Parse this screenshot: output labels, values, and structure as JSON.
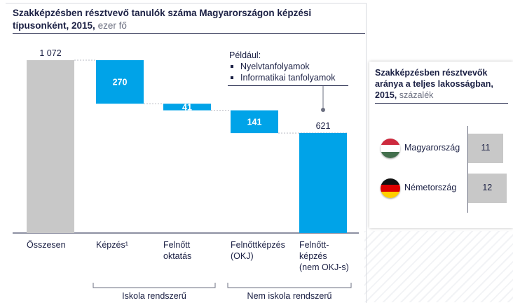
{
  "chart_data": [
    {
      "type": "waterfall",
      "title": "Szakképzésben résztvevő tanulók száma Magyarországon képzési típusonként, 2015,",
      "unit": "ezer fő",
      "ylim": [
        0,
        1072
      ],
      "categories": [
        "Összesen",
        "Képzés¹",
        "Felnőtt oktatás",
        "Felnőttképzés (OKJ)",
        "Felnőtt-képzés (nem OKJ-s)"
      ],
      "category_lines": [
        [
          "Összesen"
        ],
        [
          "Képzés¹"
        ],
        [
          "Felnőtt",
          "oktatás"
        ],
        [
          "Felnőttképzés",
          "(OKJ)"
        ],
        [
          "Felnőtt-",
          "képzés",
          "(nem OKJ-s)"
        ]
      ],
      "bars": [
        {
          "label": "1 072",
          "value": 1072,
          "start": 0,
          "end": 1072,
          "kind": "total"
        },
        {
          "label": "270",
          "value": 270,
          "start": 802,
          "end": 1072,
          "kind": "step"
        },
        {
          "label": "41",
          "value": 41,
          "start": 761,
          "end": 802,
          "kind": "step"
        },
        {
          "label": "141",
          "value": 141,
          "start": 620,
          "end": 761,
          "kind": "step"
        },
        {
          "label": "621",
          "value": 621,
          "start": 0,
          "end": 621,
          "kind": "total"
        }
      ],
      "groups": [
        {
          "label": "Iskola rendszerű",
          "from": 1,
          "to": 2
        },
        {
          "label": "Nem iskola rendszerű",
          "from": 3,
          "to": 4
        }
      ],
      "annotation": {
        "heading": "Például:",
        "items": [
          "Nyelvtanfolyamok",
          "Informatikai tanfolyamok"
        ]
      }
    },
    {
      "type": "bar",
      "orientation": "horizontal",
      "title": "Szakképzésben résztvevők aránya a teljes lakosságban, 2015,",
      "unit": "százalék",
      "categories": [
        "Magyarország",
        "Németország"
      ],
      "values": [
        11,
        12
      ],
      "value_labels": [
        "11",
        "12"
      ]
    }
  ],
  "colors": {
    "accent": "#00a3e8",
    "total": "#c8c8c8",
    "navy": "#1b2044",
    "muted": "#6b6f80"
  },
  "icons": {
    "hungary": "hungary-flag-icon",
    "germany": "germany-flag-icon"
  }
}
